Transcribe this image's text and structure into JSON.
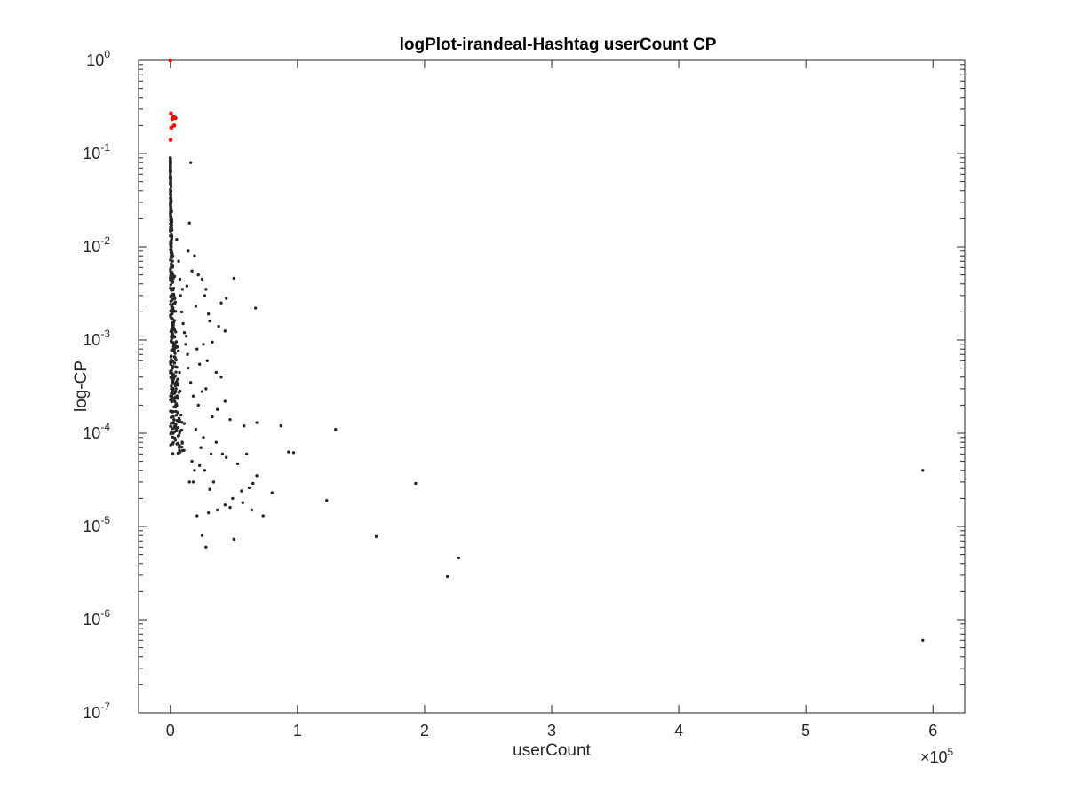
{
  "chart_data": {
    "type": "scatter",
    "title": "logPlot-irandeal-Hashtag userCount CP",
    "xlabel": "userCount",
    "ylabel": "log-CP",
    "x_exponent_label": "×10",
    "x_exponent_power": "5",
    "xlim": [
      -25000,
      625000
    ],
    "ylim": [
      1e-07,
      1
    ],
    "y_scale": "log",
    "grid": false,
    "x_ticks": [
      0,
      100000,
      200000,
      300000,
      400000,
      500000,
      600000
    ],
    "x_tick_labels": [
      "0",
      "1",
      "2",
      "3",
      "4",
      "5",
      "6"
    ],
    "y_ticks": [
      1e-07,
      1e-06,
      1e-05,
      0.0001,
      0.001,
      0.01,
      0.1,
      1
    ],
    "y_tick_base": "10",
    "y_tick_exponents": [
      "-7",
      "-6",
      "-5",
      "-4",
      "-3",
      "-2",
      "-1",
      "0"
    ],
    "colors": {
      "highlight": "#ff0000",
      "points": "#262626",
      "axis": "#262626"
    },
    "series": [
      {
        "color": "#ff0000",
        "points": [
          [
            0,
            1.0
          ],
          [
            500,
            0.27
          ],
          [
            2500,
            0.25
          ],
          [
            1500,
            0.235
          ],
          [
            4000,
            0.24
          ],
          [
            800,
            0.19
          ],
          [
            3000,
            0.2
          ],
          [
            200,
            0.14
          ]
        ]
      },
      {
        "color": "#262626",
        "points": [
          [
            16000,
            0.08
          ],
          [
            15000,
            0.018
          ],
          [
            5000,
            0.012
          ],
          [
            14000,
            0.009
          ],
          [
            19000,
            0.008
          ],
          [
            17000,
            0.0055
          ],
          [
            22000,
            0.005
          ],
          [
            25000,
            0.0045
          ],
          [
            50000,
            0.0046
          ],
          [
            13000,
            0.0038
          ],
          [
            28000,
            0.0035
          ],
          [
            27000,
            0.003
          ],
          [
            40000,
            0.0025
          ],
          [
            44000,
            0.0028
          ],
          [
            67000,
            0.0022
          ],
          [
            20000,
            0.0023
          ],
          [
            30000,
            0.0019
          ],
          [
            31000,
            0.0016
          ],
          [
            38000,
            0.0014
          ],
          [
            43000,
            0.00125
          ],
          [
            11000,
            0.0012
          ],
          [
            33000,
            0.00095
          ],
          [
            12000,
            0.0009
          ],
          [
            21000,
            0.0008
          ],
          [
            29000,
            0.0006
          ],
          [
            36000,
            0.00045
          ],
          [
            40000,
            0.0004
          ],
          [
            28000,
            0.0003
          ],
          [
            43000,
            0.00022
          ],
          [
            37000,
            0.00018
          ],
          [
            33000,
            0.00015
          ],
          [
            47000,
            0.00014
          ],
          [
            58000,
            0.00012
          ],
          [
            68000,
            0.00013
          ],
          [
            87000,
            0.00012
          ],
          [
            130000,
            0.00011
          ],
          [
            93000,
            6.3e-05
          ],
          [
            97000,
            6.2e-05
          ],
          [
            60000,
            6e-05
          ],
          [
            44000,
            5.5e-05
          ],
          [
            53000,
            4.7e-05
          ],
          [
            68000,
            3.5e-05
          ],
          [
            65000,
            2.9e-05
          ],
          [
            62000,
            2.6e-05
          ],
          [
            80000,
            2.3e-05
          ],
          [
            56000,
            2.4e-05
          ],
          [
            57000,
            1.8e-05
          ],
          [
            43000,
            1.7e-05
          ],
          [
            49000,
            2e-05
          ],
          [
            47000,
            1.6e-05
          ],
          [
            73000,
            1.3e-05
          ],
          [
            64000,
            1.5e-05
          ],
          [
            37000,
            1.5e-05
          ],
          [
            30000,
            1.4e-05
          ],
          [
            21000,
            1.3e-05
          ],
          [
            25000,
            8e-06
          ],
          [
            28000,
            6e-06
          ],
          [
            50000,
            7.3e-06
          ],
          [
            123000,
            1.9e-05
          ],
          [
            193000,
            2.9e-05
          ],
          [
            162000,
            7.8e-06
          ],
          [
            227000,
            4.6e-06
          ],
          [
            218000,
            2.9e-06
          ],
          [
            592000,
            4e-05
          ],
          [
            592000,
            6e-07
          ],
          [
            18000,
            3e-05
          ],
          [
            23000,
            4.5e-05
          ],
          [
            27000,
            4e-05
          ],
          [
            31000,
            2.5e-05
          ],
          [
            34000,
            3e-05
          ],
          [
            24000,
            7e-05
          ],
          [
            32000,
            6e-05
          ],
          [
            26000,
            9e-05
          ],
          [
            36000,
            8e-05
          ],
          [
            41000,
            6e-05
          ],
          [
            17000,
            5e-05
          ],
          [
            19000,
            4e-05
          ],
          [
            15000,
            3e-05
          ],
          [
            20000,
            0.00011
          ],
          [
            22000,
            0.0002
          ],
          [
            18000,
            0.00025
          ],
          [
            25000,
            0.00028
          ],
          [
            16000,
            0.00035
          ],
          [
            14000,
            0.0005
          ],
          [
            23000,
            0.00055
          ],
          [
            10000,
            0.0015
          ],
          [
            9000,
            0.002
          ],
          [
            8000,
            0.003
          ],
          [
            7500,
            0.0045
          ],
          [
            6500,
            0.007
          ],
          [
            9500,
            0.0035
          ],
          [
            12500,
            0.0011
          ],
          [
            13500,
            0.0007
          ],
          [
            26000,
            0.0009
          ]
        ]
      }
    ]
  }
}
